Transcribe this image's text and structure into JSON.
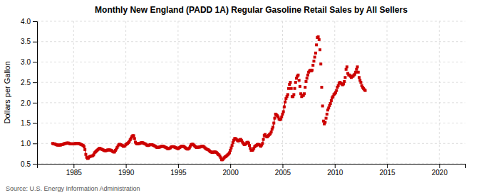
{
  "chart_data": {
    "type": "line",
    "title": "Monthly New England (PADD 1A) Regular Gasoline Retail Sales by All Sellers",
    "ylabel": "Dollars per Gallon",
    "annotations": [
      "Source: U.S. Energy Information Administration"
    ],
    "xlim": [
      1981.5,
      2022.5
    ],
    "ylim": [
      0.5,
      4.0
    ],
    "xticks": [
      1985,
      1990,
      1995,
      2000,
      2005,
      2010,
      2015,
      2020
    ],
    "yticks": [
      0.5,
      {
        "value": 1.0,
        "label": "1.0"
      },
      1.5,
      {
        "value": 2.0,
        "label": "2.0"
      },
      2.5,
      {
        "value": 3.0,
        "label": "3.0"
      },
      3.5,
      {
        "value": 4.0,
        "label": "4.0"
      }
    ],
    "grid": true,
    "series": [
      {
        "type": "line",
        "color": "#cc0000",
        "marker": "square",
        "line_style": "solid",
        "x": [
          1983.0,
          1983.083,
          1983.167,
          1983.25,
          1983.333,
          1983.417,
          1983.5,
          1983.583,
          1983.667,
          1983.75,
          1983.833,
          1983.917,
          1984.0,
          1984.083,
          1984.167,
          1984.25,
          1984.333,
          1984.417,
          1984.5,
          1984.583,
          1984.667,
          1984.75,
          1984.833,
          1984.917,
          1985.0,
          1985.083,
          1985.167,
          1985.25,
          1985.333,
          1985.417,
          1985.5,
          1985.583,
          1985.667,
          1985.75,
          1985.833,
          1985.917,
          1986.0,
          1986.083,
          1986.167,
          1986.25,
          1986.333,
          1986.417,
          1986.5,
          1986.583,
          1986.667,
          1986.75,
          1986.833,
          1986.917,
          1987.0,
          1987.083,
          1987.167,
          1987.25,
          1987.333,
          1987.417,
          1987.5,
          1987.583,
          1987.667,
          1987.75,
          1987.833,
          1987.917,
          1988.0,
          1988.083,
          1988.167,
          1988.25,
          1988.333,
          1988.417,
          1988.5,
          1988.583,
          1988.667,
          1988.75,
          1988.833,
          1988.917,
          1989.0,
          1989.083,
          1989.167,
          1989.25,
          1989.333,
          1989.417,
          1989.5,
          1989.583,
          1989.667,
          1989.75,
          1989.833,
          1989.917,
          1990.0,
          1990.083,
          1990.167,
          1990.25,
          1990.333,
          1990.417,
          1990.5,
          1990.583,
          1990.667,
          1990.75,
          1990.833,
          1990.917,
          1991.0,
          1991.083,
          1991.167,
          1991.25,
          1991.333,
          1991.417,
          1991.5,
          1991.583,
          1991.667,
          1991.75,
          1991.833,
          1991.917,
          1992.0,
          1992.083,
          1992.167,
          1992.25,
          1992.333,
          1992.417,
          1992.5,
          1992.583,
          1992.667,
          1992.75,
          1992.833,
          1992.917,
          1993.0,
          1993.083,
          1993.167,
          1993.25,
          1993.333,
          1993.417,
          1993.5,
          1993.583,
          1993.667,
          1993.75,
          1993.833,
          1993.917,
          1994.0,
          1994.083,
          1994.167,
          1994.25,
          1994.333,
          1994.417,
          1994.5,
          1994.583,
          1994.667,
          1994.75,
          1994.833,
          1994.917,
          1995.0,
          1995.083,
          1995.167,
          1995.25,
          1995.333,
          1995.417,
          1995.5,
          1995.583,
          1995.667,
          1995.75,
          1995.833,
          1995.917,
          1996.0,
          1996.083,
          1996.167,
          1996.25,
          1996.333,
          1996.417,
          1996.5,
          1996.583,
          1996.667,
          1996.75,
          1996.833,
          1996.917,
          1997.0,
          1997.083,
          1997.167,
          1997.25,
          1997.333,
          1997.417,
          1997.5,
          1997.583,
          1997.667,
          1997.75,
          1997.833,
          1997.917,
          1998.0,
          1998.083,
          1998.167,
          1998.25,
          1998.333,
          1998.417,
          1998.5,
          1998.583,
          1998.667,
          1998.75,
          1998.833,
          1998.917,
          1999.0,
          1999.083,
          1999.167,
          1999.25,
          1999.333,
          1999.417,
          1999.5,
          1999.583,
          1999.667,
          1999.75,
          1999.833,
          1999.917,
          2000.0,
          2000.083,
          2000.167,
          2000.25,
          2000.333,
          2000.417,
          2000.5,
          2000.583,
          2000.667,
          2000.75,
          2000.833,
          2000.917,
          2001.0,
          2001.083,
          2001.167,
          2001.25,
          2001.333,
          2001.417,
          2001.5,
          2001.583,
          2001.667,
          2001.75,
          2001.833,
          2001.917,
          2002.0,
          2002.083,
          2002.167,
          2002.25,
          2002.333,
          2002.417,
          2002.5,
          2002.583,
          2002.667,
          2002.75,
          2002.833,
          2002.917,
          2003.0,
          2003.083,
          2003.167,
          2003.25,
          2003.333,
          2003.417,
          2003.5,
          2003.583,
          2003.667,
          2003.75,
          2003.833,
          2003.917,
          2004.0,
          2004.083,
          2004.167,
          2004.25,
          2004.333,
          2004.417,
          2004.5,
          2004.583,
          2004.667,
          2004.75,
          2004.833,
          2004.917,
          2005.0,
          2005.083,
          2005.167,
          2005.25,
          2005.333,
          2005.417,
          2005.5
        ],
        "values": [
          1.0,
          0.99,
          0.99,
          0.98,
          0.97,
          0.96,
          0.96,
          0.96,
          0.96,
          0.96,
          0.97,
          0.97,
          0.98,
          0.99,
          1.0,
          1.0,
          1.01,
          1.01,
          1.01,
          1.0,
          0.99,
          0.99,
          0.99,
          0.99,
          0.99,
          0.99,
          1.0,
          1.0,
          1.0,
          1.0,
          1.0,
          0.99,
          0.98,
          0.97,
          0.96,
          0.95,
          0.92,
          0.85,
          0.73,
          0.66,
          0.63,
          0.64,
          0.67,
          0.68,
          0.69,
          0.69,
          0.7,
          0.72,
          0.77,
          0.79,
          0.81,
          0.83,
          0.85,
          0.87,
          0.88,
          0.87,
          0.86,
          0.85,
          0.84,
          0.83,
          0.82,
          0.82,
          0.83,
          0.84,
          0.84,
          0.84,
          0.84,
          0.83,
          0.82,
          0.8,
          0.79,
          0.79,
          0.83,
          0.86,
          0.9,
          0.94,
          0.97,
          0.98,
          0.97,
          0.96,
          0.95,
          0.93,
          0.93,
          0.94,
          0.97,
          0.99,
          1.0,
          1.02,
          1.05,
          1.09,
          1.13,
          1.17,
          1.19,
          1.19,
          1.12,
          1.03,
          1.0,
          0.99,
          0.99,
          1.0,
          1.0,
          1.01,
          1.02,
          1.02,
          1.01,
          1.0,
          0.99,
          0.98,
          0.96,
          0.95,
          0.95,
          0.96,
          0.97,
          0.97,
          0.97,
          0.96,
          0.95,
          0.94,
          0.93,
          0.91,
          0.9,
          0.9,
          0.91,
          0.91,
          0.92,
          0.93,
          0.93,
          0.93,
          0.92,
          0.91,
          0.9,
          0.89,
          0.87,
          0.87,
          0.88,
          0.89,
          0.91,
          0.92,
          0.92,
          0.92,
          0.91,
          0.9,
          0.89,
          0.88,
          0.87,
          0.89,
          0.9,
          0.92,
          0.93,
          0.93,
          0.93,
          0.92,
          0.9,
          0.88,
          0.87,
          0.86,
          0.87,
          0.89,
          0.93,
          0.97,
          0.98,
          0.98,
          0.96,
          0.94,
          0.92,
          0.9,
          0.9,
          0.91,
          0.91,
          0.91,
          0.92,
          0.93,
          0.93,
          0.93,
          0.91,
          0.89,
          0.87,
          0.86,
          0.85,
          0.84,
          0.82,
          0.8,
          0.79,
          0.78,
          0.78,
          0.79,
          0.79,
          0.79,
          0.78,
          0.76,
          0.73,
          0.72,
          0.69,
          0.65,
          0.6,
          0.6,
          0.62,
          0.65,
          0.67,
          0.68,
          0.7,
          0.72,
          0.74,
          0.77,
          0.83,
          0.89,
          0.95,
          1.02,
          1.08,
          1.12,
          1.12,
          1.1,
          1.08,
          1.06,
          1.07,
          1.09,
          1.1,
          1.07,
          1.03,
          1.0,
          0.97,
          0.98,
          0.99,
          1.02,
          1.03,
          1.01,
          0.95,
          0.88,
          0.83,
          0.83,
          0.84,
          0.88,
          0.92,
          0.94,
          0.95,
          0.97,
          0.98,
          0.97,
          0.95,
          0.93,
          0.96,
          1.0,
          1.1,
          1.2,
          1.22,
          1.18,
          1.16,
          1.17,
          1.2,
          1.22,
          1.24,
          1.28,
          1.35,
          1.4,
          1.5,
          1.62,
          1.72,
          1.7,
          1.68,
          1.65,
          1.6,
          1.58,
          1.6,
          1.65,
          1.72,
          1.78,
          1.9,
          2.02,
          2.1,
          2.15,
          2.2
        ]
      },
      {
        "type": "scatter",
        "color": "#cc0000",
        "marker": "square",
        "x": [
          2005.583,
          2005.667,
          2005.75,
          2005.833,
          2005.917,
          2006.0,
          2006.083,
          2006.167,
          2006.25,
          2006.333,
          2006.417,
          2006.5,
          2006.583,
          2006.667,
          2006.75,
          2006.833,
          2006.917,
          2007.0,
          2007.083,
          2007.167,
          2007.25,
          2007.333,
          2007.417,
          2007.5,
          2007.583,
          2007.667,
          2007.75,
          2007.833,
          2007.917,
          2008.0,
          2008.083,
          2008.167,
          2008.25,
          2008.333,
          2008.417,
          2008.5,
          2008.583,
          2008.667,
          2008.75,
          2008.833,
          2008.917,
          2009.0,
          2009.083,
          2009.167,
          2009.25,
          2009.333,
          2009.417,
          2009.5,
          2009.583,
          2009.667,
          2009.75,
          2009.833,
          2009.917,
          2010.0,
          2010.083,
          2010.167,
          2010.25,
          2010.333,
          2010.417,
          2010.5,
          2010.583,
          2010.667,
          2010.75,
          2010.833,
          2010.917,
          2011.0,
          2011.083,
          2011.167,
          2011.25,
          2011.333,
          2011.417,
          2011.5,
          2011.583,
          2011.667,
          2011.75,
          2011.833,
          2011.917,
          2012.0,
          2012.083,
          2012.167,
          2012.25,
          2012.333,
          2012.417,
          2012.5,
          2012.583,
          2012.667,
          2012.75,
          2012.833,
          2012.917
        ],
        "values": [
          2.35,
          2.45,
          2.5,
          2.35,
          2.15,
          2.15,
          2.2,
          2.35,
          2.5,
          2.6,
          2.65,
          2.68,
          2.55,
          2.4,
          2.22,
          2.15,
          2.18,
          2.18,
          2.22,
          2.38,
          2.52,
          2.6,
          2.68,
          2.75,
          2.78,
          2.8,
          2.78,
          2.8,
          2.92,
          3.02,
          3.12,
          3.22,
          3.42,
          3.6,
          3.62,
          3.55,
          3.3,
          2.95,
          2.38,
          1.92,
          1.55,
          1.48,
          1.52,
          1.62,
          1.72,
          1.82,
          1.87,
          1.93,
          1.98,
          2.05,
          2.12,
          2.15,
          2.2,
          2.22,
          2.25,
          2.3,
          2.38,
          2.42,
          2.48,
          2.5,
          2.48,
          2.46,
          2.44,
          2.46,
          2.52,
          2.62,
          2.82,
          2.88,
          2.72,
          2.68,
          2.68,
          2.65,
          2.62,
          2.65,
          2.65,
          2.68,
          2.7,
          2.75,
          2.82,
          2.88,
          2.75,
          2.62,
          2.55,
          2.5,
          2.42,
          2.38,
          2.35,
          2.32,
          2.3
        ]
      }
    ]
  }
}
